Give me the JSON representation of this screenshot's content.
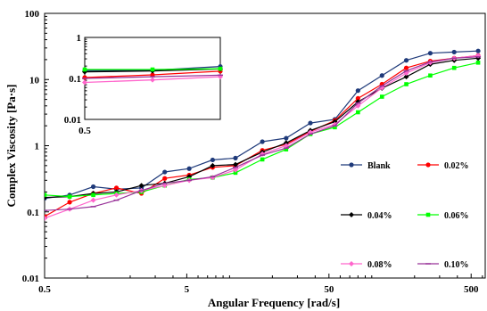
{
  "chart_data": [
    {
      "type": "line",
      "xlabel": "Angular Frequency [rad/s]",
      "ylabel": "Complex Viscosity [Pa·s]",
      "xscale": "log",
      "yscale": "log",
      "xlim": [
        0.5,
        628
      ],
      "ylim": [
        0.01,
        100
      ],
      "xticks": [
        "0.5",
        "5",
        "50",
        "500"
      ],
      "yticks": [
        "0.01",
        "0.1",
        "1",
        "10",
        "100"
      ],
      "grid": false,
      "legend_position": "right, 3 rows x 2 columns",
      "series": [
        {
          "name": "Blank",
          "color": "#1f3a7a",
          "marker": "circle",
          "points": [
            [
              0.5,
              0.16
            ],
            [
              0.75,
              0.18
            ],
            [
              1.1,
              0.24
            ],
            [
              1.6,
              0.22
            ],
            [
              2.4,
              0.23
            ],
            [
              3.5,
              0.4
            ],
            [
              5.2,
              0.45
            ],
            [
              7.6,
              0.61
            ],
            [
              11,
              0.65
            ],
            [
              17,
              1.15
            ],
            [
              25,
              1.3
            ],
            [
              37,
              2.2
            ],
            [
              55,
              2.5
            ],
            [
              80,
              6.8
            ],
            [
              118,
              11.5
            ],
            [
              175,
              19.5
            ],
            [
              258,
              25
            ],
            [
              380,
              26
            ],
            [
              560,
              27
            ]
          ]
        },
        {
          "name": "0.02%",
          "color": "#ff0000",
          "marker": "circle",
          "points": [
            [
              0.5,
              0.085
            ],
            [
              0.75,
              0.14
            ],
            [
              1.1,
              0.19
            ],
            [
              1.6,
              0.23
            ],
            [
              2.4,
              0.19
            ],
            [
              3.5,
              0.32
            ],
            [
              5.2,
              0.36
            ],
            [
              7.6,
              0.47
            ],
            [
              11,
              0.5
            ],
            [
              17,
              0.85
            ],
            [
              25,
              1.05
            ],
            [
              37,
              1.65
            ],
            [
              55,
              2.4
            ],
            [
              80,
              5.2
            ],
            [
              118,
              8.5
            ],
            [
              175,
              15
            ],
            [
              258,
              19
            ],
            [
              380,
              21
            ],
            [
              560,
              23
            ]
          ]
        },
        {
          "name": "0.04%",
          "color": "#000000",
          "marker": "diamond",
          "points": [
            [
              0.5,
              0.165
            ],
            [
              0.75,
              0.17
            ],
            [
              1.1,
              0.19
            ],
            [
              1.6,
              0.2
            ],
            [
              2.4,
              0.25
            ],
            [
              3.5,
              0.27
            ],
            [
              5.2,
              0.34
            ],
            [
              7.6,
              0.5
            ],
            [
              11,
              0.52
            ],
            [
              17,
              0.8
            ],
            [
              25,
              1.1
            ],
            [
              37,
              1.7
            ],
            [
              55,
              2.3
            ],
            [
              80,
              4.6
            ],
            [
              118,
              7.4
            ],
            [
              175,
              11
            ],
            [
              258,
              17
            ],
            [
              380,
              19.5
            ],
            [
              560,
              21
            ]
          ]
        },
        {
          "name": "0.06%",
          "color": "#00ff00",
          "marker": "square",
          "points": [
            [
              0.5,
              0.18
            ],
            [
              0.75,
              0.17
            ],
            [
              1.1,
              0.18
            ],
            [
              1.6,
              0.19
            ],
            [
              2.4,
              0.2
            ],
            [
              3.5,
              0.25
            ],
            [
              5.2,
              0.31
            ],
            [
              7.6,
              0.33
            ],
            [
              11,
              0.39
            ],
            [
              17,
              0.62
            ],
            [
              25,
              0.88
            ],
            [
              37,
              1.5
            ],
            [
              55,
              1.9
            ],
            [
              80,
              3.2
            ],
            [
              118,
              5.5
            ],
            [
              175,
              8.5
            ],
            [
              258,
              11.5
            ],
            [
              380,
              15
            ],
            [
              560,
              18
            ]
          ]
        },
        {
          "name": "0.08%",
          "color": "#ff66cc",
          "marker": "diamond",
          "points": [
            [
              0.5,
              0.08
            ],
            [
              0.75,
              0.11
            ],
            [
              1.1,
              0.15
            ],
            [
              1.6,
              0.18
            ],
            [
              2.4,
              0.21
            ],
            [
              3.5,
              0.25
            ],
            [
              5.2,
              0.3
            ],
            [
              7.6,
              0.33
            ],
            [
              11,
              0.43
            ],
            [
              17,
              0.75
            ],
            [
              25,
              1.0
            ],
            [
              37,
              1.6
            ],
            [
              55,
              2.1
            ],
            [
              80,
              4.0
            ],
            [
              118,
              7.5
            ],
            [
              175,
              12.5
            ],
            [
              258,
              18
            ],
            [
              380,
              21
            ],
            [
              560,
              23
            ]
          ]
        },
        {
          "name": "0.10%",
          "color": "#993399",
          "marker": "dash",
          "points": [
            [
              0.5,
              0.105
            ],
            [
              0.75,
              0.11
            ],
            [
              1.1,
              0.12
            ],
            [
              1.6,
              0.15
            ],
            [
              2.4,
              0.21
            ],
            [
              3.5,
              0.27
            ],
            [
              5.2,
              0.3
            ],
            [
              7.6,
              0.34
            ],
            [
              11,
              0.47
            ],
            [
              17,
              0.72
            ],
            [
              25,
              0.92
            ],
            [
              37,
              1.5
            ],
            [
              55,
              2.0
            ],
            [
              80,
              4.4
            ],
            [
              118,
              8.0
            ],
            [
              175,
              13.5
            ],
            [
              258,
              18.5
            ],
            [
              380,
              21
            ],
            [
              560,
              22
            ]
          ]
        }
      ]
    },
    {
      "type": "line",
      "role": "inset",
      "xscale": "log",
      "yscale": "log",
      "ylim": [
        0.01,
        1
      ],
      "xticks": [
        "0.5"
      ],
      "yticks": [
        "0.01",
        "0.1",
        "1"
      ],
      "series": [
        {
          "name": "Blank",
          "color": "#1f3a7a",
          "marker": "circle",
          "points": [
            [
              0.5,
              0.155
            ],
            [
              1.0,
              0.158
            ],
            [
              2.0,
              0.195
            ]
          ]
        },
        {
          "name": "0.02%",
          "color": "#ff0000",
          "marker": "circle",
          "points": [
            [
              0.5,
              0.105
            ],
            [
              1.0,
              0.122
            ],
            [
              2.0,
              0.15
            ]
          ]
        },
        {
          "name": "0.04%",
          "color": "#000000",
          "marker": "diamond",
          "points": [
            [
              0.5,
              0.145
            ],
            [
              1.0,
              0.152
            ],
            [
              2.0,
              0.17
            ]
          ]
        },
        {
          "name": "0.06%",
          "color": "#00ff00",
          "marker": "square",
          "points": [
            [
              0.5,
              0.165
            ],
            [
              1.0,
              0.165
            ],
            [
              2.0,
              0.172
            ]
          ]
        },
        {
          "name": "0.08%",
          "color": "#ff66cc",
          "marker": "diamond",
          "points": [
            [
              0.5,
              0.08
            ],
            [
              1.0,
              0.092
            ],
            [
              2.0,
              0.11
            ]
          ]
        },
        {
          "name": "0.10%",
          "color": "#993399",
          "marker": "dash",
          "points": [
            [
              0.5,
              0.1
            ],
            [
              1.0,
              0.11
            ],
            [
              2.0,
              0.12
            ]
          ]
        }
      ]
    }
  ]
}
